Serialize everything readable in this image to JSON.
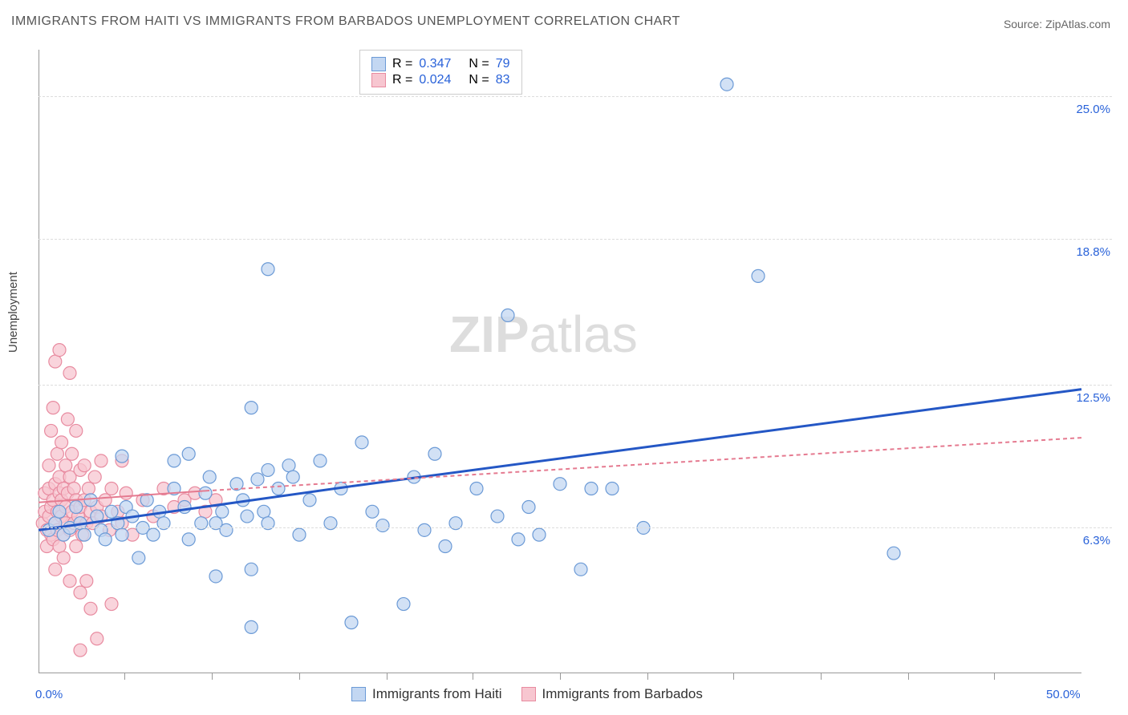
{
  "title": "IMMIGRANTS FROM HAITI VS IMMIGRANTS FROM BARBADOS UNEMPLOYMENT CORRELATION CHART",
  "source": "Source: ZipAtlas.com",
  "ylabel": "Unemployment",
  "watermark": "ZIPatlas",
  "chart": {
    "type": "scatter",
    "xlim": [
      0,
      50
    ],
    "ylim": [
      0,
      27
    ],
    "x_ticks_minor": [
      4.1,
      8.3,
      12.5,
      16.7,
      20.8,
      25.0,
      29.2,
      33.3,
      37.5,
      41.7,
      45.8
    ],
    "x_tick_labels": [
      {
        "value": 0,
        "label": "0.0%",
        "color": "#2962d9"
      },
      {
        "value": 50,
        "label": "50.0%",
        "color": "#2962d9"
      }
    ],
    "y_gridlines": [
      6.3,
      12.5,
      18.8,
      25.0
    ],
    "y_tick_labels": [
      {
        "value": 6.3,
        "label": "6.3%",
        "color": "#2962d9"
      },
      {
        "value": 12.5,
        "label": "12.5%",
        "color": "#2962d9"
      },
      {
        "value": 18.8,
        "label": "18.8%",
        "color": "#2962d9"
      },
      {
        "value": 25.0,
        "label": "25.0%",
        "color": "#2962d9"
      }
    ],
    "background_color": "#ffffff",
    "grid_color": "#dddddd",
    "axis_color": "#999999"
  },
  "series": [
    {
      "name": "Immigrants from Haiti",
      "marker_color_fill": "#c3d7f2",
      "marker_color_stroke": "#6b9ad6",
      "marker_radius": 8,
      "trend_color": "#2457c5",
      "trend_width": 3,
      "trend_dash": "none",
      "trend_x1": 0,
      "trend_y1": 6.2,
      "trend_x2_solid": 15,
      "trend_y2_solid": 8.1,
      "trend_x2": 50,
      "trend_y2": 12.3,
      "R": "0.347",
      "N": "79",
      "points": [
        [
          0.5,
          6.2
        ],
        [
          0.8,
          6.5
        ],
        [
          1.0,
          7.0
        ],
        [
          1.2,
          6.0
        ],
        [
          1.5,
          6.3
        ],
        [
          1.8,
          7.2
        ],
        [
          2.0,
          6.5
        ],
        [
          2.2,
          6.0
        ],
        [
          2.5,
          7.5
        ],
        [
          2.8,
          6.8
        ],
        [
          3.0,
          6.2
        ],
        [
          3.2,
          5.8
        ],
        [
          3.5,
          7.0
        ],
        [
          3.8,
          6.5
        ],
        [
          4.0,
          6.0
        ],
        [
          4.0,
          9.4
        ],
        [
          4.2,
          7.2
        ],
        [
          4.5,
          6.8
        ],
        [
          4.8,
          5.0
        ],
        [
          5.0,
          6.3
        ],
        [
          5.2,
          7.5
        ],
        [
          5.5,
          6.0
        ],
        [
          5.8,
          7.0
        ],
        [
          6.0,
          6.5
        ],
        [
          6.5,
          8.0
        ],
        [
          6.5,
          9.2
        ],
        [
          7.0,
          7.2
        ],
        [
          7.2,
          5.8
        ],
        [
          7.2,
          9.5
        ],
        [
          7.8,
          6.5
        ],
        [
          8.0,
          7.8
        ],
        [
          8.2,
          8.5
        ],
        [
          8.5,
          6.5
        ],
        [
          8.5,
          4.2
        ],
        [
          8.8,
          7.0
        ],
        [
          9.0,
          6.2
        ],
        [
          9.5,
          8.2
        ],
        [
          9.8,
          7.5
        ],
        [
          10.0,
          6.8
        ],
        [
          10.2,
          11.5
        ],
        [
          10.2,
          2.0
        ],
        [
          10.2,
          4.5
        ],
        [
          10.5,
          8.4
        ],
        [
          10.8,
          7.0
        ],
        [
          11.0,
          6.5
        ],
        [
          11.0,
          17.5
        ],
        [
          11.0,
          8.8
        ],
        [
          11.5,
          8.0
        ],
        [
          12.0,
          9.0
        ],
        [
          12.2,
          8.5
        ],
        [
          12.5,
          6.0
        ],
        [
          13.0,
          7.5
        ],
        [
          13.5,
          9.2
        ],
        [
          14.0,
          6.5
        ],
        [
          14.5,
          8.0
        ],
        [
          15.0,
          2.2
        ],
        [
          15.5,
          10.0
        ],
        [
          16.0,
          7.0
        ],
        [
          16.5,
          6.4
        ],
        [
          17.5,
          3.0
        ],
        [
          18.0,
          8.5
        ],
        [
          18.5,
          6.2
        ],
        [
          19.0,
          9.5
        ],
        [
          19.5,
          5.5
        ],
        [
          20.0,
          6.5
        ],
        [
          21.0,
          8.0
        ],
        [
          22.0,
          6.8
        ],
        [
          22.5,
          15.5
        ],
        [
          23.0,
          5.8
        ],
        [
          23.5,
          7.2
        ],
        [
          24.0,
          6.0
        ],
        [
          25.0,
          8.2
        ],
        [
          26.0,
          4.5
        ],
        [
          26.5,
          8.0
        ],
        [
          27.5,
          8.0
        ],
        [
          29.0,
          6.3
        ],
        [
          33.0,
          25.5
        ],
        [
          34.5,
          17.2
        ],
        [
          41.0,
          5.2
        ]
      ]
    },
    {
      "name": "Immigrants from Barbados",
      "marker_color_fill": "#f7c6d0",
      "marker_color_stroke": "#e88ba0",
      "marker_radius": 8,
      "trend_color": "#e57a90",
      "trend_width": 2,
      "trend_dash": "5,4",
      "trend_x1": 0,
      "trend_y1": 7.4,
      "trend_x2_solid": 8,
      "trend_y2_solid": 7.9,
      "trend_x2": 50,
      "trend_y2": 10.2,
      "R": "0.024",
      "N": "83",
      "points": [
        [
          0.2,
          6.5
        ],
        [
          0.3,
          7.0
        ],
        [
          0.3,
          7.8
        ],
        [
          0.4,
          5.5
        ],
        [
          0.4,
          6.2
        ],
        [
          0.5,
          8.0
        ],
        [
          0.5,
          6.8
        ],
        [
          0.5,
          9.0
        ],
        [
          0.6,
          7.2
        ],
        [
          0.6,
          6.0
        ],
        [
          0.6,
          10.5
        ],
        [
          0.7,
          7.5
        ],
        [
          0.7,
          5.8
        ],
        [
          0.7,
          11.5
        ],
        [
          0.8,
          6.5
        ],
        [
          0.8,
          8.2
        ],
        [
          0.8,
          4.5
        ],
        [
          0.8,
          13.5
        ],
        [
          0.9,
          7.0
        ],
        [
          0.9,
          9.5
        ],
        [
          0.9,
          6.2
        ],
        [
          1.0,
          7.8
        ],
        [
          1.0,
          5.5
        ],
        [
          1.0,
          8.5
        ],
        [
          1.0,
          14.0
        ],
        [
          1.1,
          6.8
        ],
        [
          1.1,
          7.5
        ],
        [
          1.1,
          10.0
        ],
        [
          1.2,
          6.0
        ],
        [
          1.2,
          8.0
        ],
        [
          1.2,
          5.0
        ],
        [
          1.3,
          7.2
        ],
        [
          1.3,
          9.0
        ],
        [
          1.3,
          6.5
        ],
        [
          1.4,
          7.8
        ],
        [
          1.4,
          11.0
        ],
        [
          1.5,
          6.2
        ],
        [
          1.5,
          8.5
        ],
        [
          1.5,
          4.0
        ],
        [
          1.5,
          13.0
        ],
        [
          1.6,
          7.0
        ],
        [
          1.6,
          9.5
        ],
        [
          1.7,
          6.5
        ],
        [
          1.7,
          8.0
        ],
        [
          1.8,
          7.5
        ],
        [
          1.8,
          5.5
        ],
        [
          1.8,
          10.5
        ],
        [
          1.9,
          6.8
        ],
        [
          2.0,
          7.2
        ],
        [
          2.0,
          8.8
        ],
        [
          2.0,
          3.5
        ],
        [
          2.0,
          1.0
        ],
        [
          2.1,
          6.0
        ],
        [
          2.2,
          7.5
        ],
        [
          2.2,
          9.0
        ],
        [
          2.3,
          6.5
        ],
        [
          2.3,
          4.0
        ],
        [
          2.4,
          8.0
        ],
        [
          2.5,
          7.0
        ],
        [
          2.5,
          2.8
        ],
        [
          2.6,
          6.5
        ],
        [
          2.7,
          8.5
        ],
        [
          2.8,
          7.2
        ],
        [
          2.8,
          1.5
        ],
        [
          3.0,
          6.8
        ],
        [
          3.0,
          9.2
        ],
        [
          3.2,
          7.5
        ],
        [
          3.4,
          6.2
        ],
        [
          3.5,
          8.0
        ],
        [
          3.5,
          3.0
        ],
        [
          3.8,
          7.0
        ],
        [
          4.0,
          6.5
        ],
        [
          4.0,
          9.2
        ],
        [
          4.2,
          7.8
        ],
        [
          4.5,
          6.0
        ],
        [
          5.0,
          7.5
        ],
        [
          5.5,
          6.8
        ],
        [
          6.0,
          8.0
        ],
        [
          6.5,
          7.2
        ],
        [
          7.0,
          7.5
        ],
        [
          7.5,
          7.8
        ],
        [
          8.0,
          7.0
        ],
        [
          8.5,
          7.5
        ]
      ]
    }
  ],
  "legend_top": {
    "r_label": "R =",
    "n_label": "N ="
  },
  "legend_bottom": {
    "label1": "Immigrants from Haiti",
    "label2": "Immigrants from Barbados"
  }
}
